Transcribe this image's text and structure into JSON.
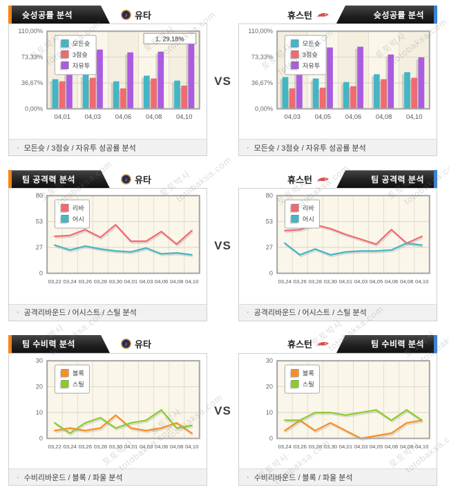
{
  "page": {
    "vs_label": "VS",
    "bullet": "·"
  },
  "teams": {
    "left": {
      "name": "유타"
    },
    "right": {
      "name": "휴스턴"
    }
  },
  "rows": [
    {
      "title": "슛성공률 분석",
      "caption": "모든슛 / 3점슛 / 자유투 성공률 분석"
    },
    {
      "title": "팀 공격력 분석",
      "caption": "공격리바운드 / 어시스트 / 스틸 분석"
    },
    {
      "title": "팀 수비력 분석",
      "caption": "수비리바운드 / 블록 / 파울 분석"
    }
  ],
  "watermark": {
    "korean": "토토박사",
    "domain": "totobaksa.com"
  },
  "colors": {
    "accent_orange": "#F5851A",
    "accent_blue": "#3C82D6",
    "teal": "#43B6C6",
    "red": "#F4696F",
    "purple": "#AB5CE0",
    "orange": "#F98E23",
    "green": "#8DCB2D"
  },
  "chart_data": [
    {
      "title": "슛성공률 분석",
      "team": "유타",
      "type": "bar",
      "y_max": 110,
      "y_ticks": [
        "110,00%",
        "73,33%",
        "36,67%",
        "0,00%"
      ],
      "categories": [
        "04,01",
        "04,03",
        "04,06",
        "04,08",
        "04,10"
      ],
      "series": [
        {
          "name": "모든슛",
          "color": "#43B6C6",
          "values": [
            42,
            48,
            39,
            47,
            40
          ]
        },
        {
          "name": "3점슛",
          "color": "#F4696F",
          "values": [
            39,
            44,
            29,
            43,
            33
          ]
        },
        {
          "name": "자유투",
          "color": "#AB5CE0",
          "values": [
            58,
            84,
            80,
            81,
            94
          ]
        }
      ],
      "tooltip": "1, 29,18%"
    },
    {
      "title": "슛성공률 분석",
      "team": "휴스턴",
      "type": "bar",
      "y_max": 110,
      "y_ticks": [
        "110,00%",
        "73,33%",
        "36,67%",
        "0,00%"
      ],
      "categories": [
        "04,03",
        "04,05",
        "04,06",
        "04,08",
        "04,10"
      ],
      "series": [
        {
          "name": "모든슛",
          "color": "#43B6C6",
          "values": [
            45,
            43,
            38,
            49,
            52
          ]
        },
        {
          "name": "3점슛",
          "color": "#F4696F",
          "values": [
            29,
            30,
            32,
            42,
            44
          ]
        },
        {
          "name": "자유투",
          "color": "#AB5CE0",
          "values": [
            59,
            87,
            88,
            77,
            73
          ]
        }
      ]
    },
    {
      "title": "팀 공격력 분석",
      "team": "유타",
      "type": "line",
      "y_max": 80,
      "y_ticks": [
        "80",
        "53",
        "27",
        "0"
      ],
      "categories": [
        "03,22",
        "03,24",
        "03,26",
        "03,28",
        "03,30",
        "04,01",
        "04,03",
        "04,06",
        "04,08",
        "04,10"
      ],
      "series": [
        {
          "name": "리바",
          "color": "#F4696F",
          "values": [
            38,
            39,
            45,
            37,
            50,
            33,
            33,
            43,
            30,
            44
          ]
        },
        {
          "name": "어시",
          "color": "#43B6C6",
          "values": [
            29,
            24,
            28,
            25,
            23,
            22,
            26,
            20,
            21,
            19
          ]
        }
      ]
    },
    {
      "title": "팀 공격력 분석",
      "team": "휴스턴",
      "type": "line",
      "y_max": 80,
      "y_ticks": [
        "80",
        "53",
        "27",
        "0"
      ],
      "categories": [
        "03,24",
        "03,26",
        "03,28",
        "03,30",
        "04,01",
        "04,03",
        "04,05",
        "04,06",
        "04,08",
        "04,10"
      ],
      "series": [
        {
          "name": "리바",
          "color": "#F4696F",
          "values": [
            44,
            45,
            50,
            46,
            40,
            35,
            30,
            45,
            31,
            38
          ]
        },
        {
          "name": "어시",
          "color": "#43B6C6",
          "values": [
            31,
            19,
            25,
            19,
            22,
            23,
            23,
            24,
            31,
            29
          ]
        }
      ]
    },
    {
      "title": "팀 수비력 분석",
      "team": "유타",
      "type": "line",
      "y_max": 30,
      "y_ticks": [
        "30",
        "20",
        "10",
        "0"
      ],
      "categories": [
        "03,22",
        "03,24",
        "03,26",
        "03,28",
        "03,30",
        "04,01",
        "04,03",
        "04,06",
        "04,08",
        "04,10"
      ],
      "series": [
        {
          "name": "블록",
          "color": "#F98E23",
          "values": [
            3,
            4,
            3,
            4,
            9,
            4,
            3,
            4,
            6,
            2
          ]
        },
        {
          "name": "스틸",
          "color": "#8DCB2D",
          "values": [
            6,
            2,
            6,
            8,
            4,
            6,
            7,
            11,
            4,
            5
          ]
        }
      ]
    },
    {
      "title": "팀 수비력 분석",
      "team": "휴스턴",
      "type": "line",
      "y_max": 30,
      "y_ticks": [
        "30",
        "20",
        "10",
        "0"
      ],
      "categories": [
        "03,24",
        "03,26",
        "03,28",
        "03,30",
        "04,01",
        "04,03",
        "04,05",
        "04,06",
        "04,08",
        "04,10"
      ],
      "series": [
        {
          "name": "블록",
          "color": "#F98E23",
          "values": [
            3,
            7,
            3,
            6,
            3,
            0,
            1,
            2,
            6,
            7
          ]
        },
        {
          "name": "스틸",
          "color": "#8DCB2D",
          "values": [
            7,
            7,
            10,
            10,
            9,
            10,
            11,
            7,
            11,
            7
          ]
        }
      ]
    }
  ]
}
